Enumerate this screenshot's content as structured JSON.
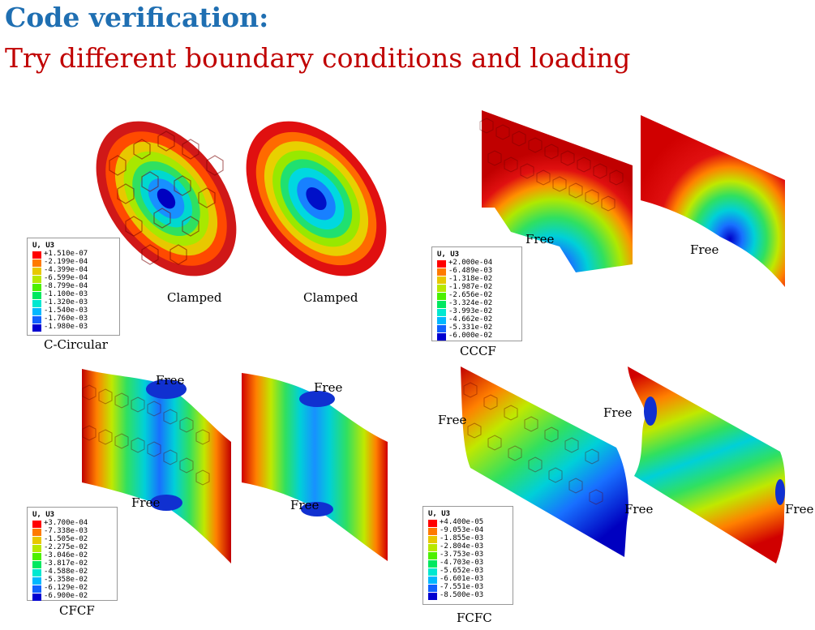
{
  "title": "Code verification:",
  "subtitle": "Try different boundary conditions and loading",
  "colormap": [
    "#ff0000",
    "#ff7a00",
    "#e8c800",
    "#b8e800",
    "#4cf000",
    "#00e860",
    "#00e8d0",
    "#00b8ff",
    "#1060ff",
    "#0000d0"
  ],
  "panels": {
    "c_circular": {
      "caption": "C-Circular",
      "labels": [
        "Clamped",
        "Clamped"
      ],
      "legend": {
        "title": "U, U3",
        "values": [
          "+1.510e-07",
          "-2.199e-04",
          "-4.399e-04",
          "-6.599e-04",
          "-8.799e-04",
          "-1.100e-03",
          "-1.320e-03",
          "-1.540e-03",
          "-1.760e-03",
          "-1.980e-03"
        ]
      }
    },
    "cccf": {
      "caption": "CCCF",
      "labels": [
        "Free",
        "Free"
      ],
      "legend": {
        "title": "U, U3",
        "values": [
          "+2.000e-04",
          "-6.489e-03",
          "-1.318e-02",
          "-1.987e-02",
          "-2.656e-02",
          "-3.324e-02",
          "-3.993e-02",
          "-4.662e-02",
          "-5.331e-02",
          "-6.000e-02"
        ]
      }
    },
    "cfcf": {
      "caption": "CFCF",
      "labels": [
        "Free",
        "Free",
        "Free",
        "Free"
      ],
      "legend": {
        "title": "U, U3",
        "values": [
          "+3.700e-04",
          "-7.338e-03",
          "-1.505e-02",
          "-2.275e-02",
          "-3.046e-02",
          "-3.817e-02",
          "-4.588e-02",
          "-5.358e-02",
          "-6.129e-02",
          "-6.900e-02"
        ]
      }
    },
    "fcfc": {
      "caption": "FCFC",
      "labels": [
        "Free",
        "Free",
        "Free",
        "Free"
      ],
      "legend": {
        "title": "U, U3",
        "values": [
          "+4.400e-05",
          "-9.053e-04",
          "-1.855e-03",
          "-2.804e-03",
          "-3.753e-03",
          "-4.703e-03",
          "-5.652e-03",
          "-6.601e-03",
          "-7.551e-03",
          "-8.500e-03"
        ]
      }
    }
  }
}
